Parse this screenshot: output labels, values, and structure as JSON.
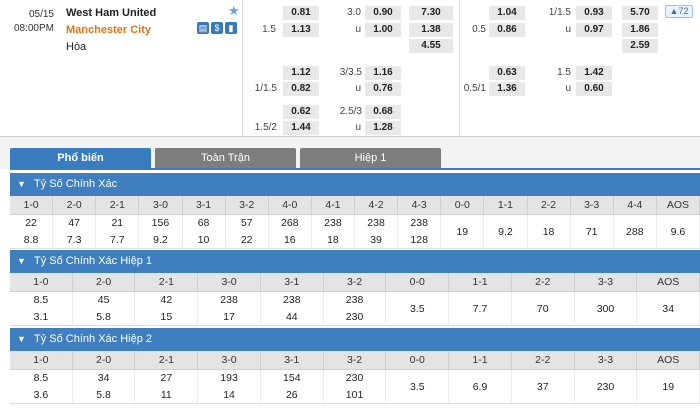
{
  "match": {
    "date": "05/15",
    "time": "08:00PM",
    "home": "West Ham United",
    "away": "Manchester City",
    "draw": "Hòa",
    "badge": "72"
  },
  "odds": {
    "r1": {
      "a": "0.81",
      "b": "3.0",
      "c": "0.90",
      "d": "7.30",
      "e": "1.04",
      "f": "1/1.5",
      "g": "0.93",
      "h": "5.70"
    },
    "r2": {
      "a": "1.5",
      "b": "1.13",
      "c": "u",
      "d": "1.00",
      "e": "1.38",
      "f": "0.5",
      "g": "0.86",
      "h": "u",
      "i": "0.97",
      "j": "1.86"
    },
    "r3": {
      "a": "4.55",
      "b": "2.59"
    },
    "r4": {
      "a": "1.12",
      "b": "3/3.5",
      "c": "1.16",
      "d": "0.63",
      "e": "1.5",
      "f": "1.42"
    },
    "r5": {
      "a": "1/1.5",
      "b": "0.82",
      "c": "u",
      "d": "0.76",
      "e": "0.5/1",
      "f": "1.36",
      "g": "u",
      "h": "0.60"
    },
    "r6": {
      "a": "0.62",
      "b": "2.5/3",
      "c": "0.68"
    },
    "r7": {
      "a": "1.5/2",
      "b": "1.44",
      "c": "u",
      "d": "1.28"
    }
  },
  "tabs": [
    "Phổ biến",
    "Toàn Trận",
    "Hiệp 1"
  ],
  "sections": [
    {
      "title": "Tỷ Số Chính Xác",
      "headers": [
        "1-0",
        "2-0",
        "2-1",
        "3-0",
        "3-1",
        "3-2",
        "4-0",
        "4-1",
        "4-2",
        "4-3",
        "0-0",
        "1-1",
        "2-2",
        "3-3",
        "4-4",
        "AOS"
      ],
      "top": [
        "22",
        "47",
        "21",
        "156",
        "68",
        "57",
        "268",
        "238",
        "238",
        "238",
        "19",
        "9.2",
        "18",
        "71",
        "288",
        "9.6"
      ],
      "bottom": [
        "8.8",
        "7.3",
        "7.7",
        "9.2",
        "10",
        "22",
        "16",
        "18",
        "39",
        "128",
        "",
        "",
        "",
        "",
        "",
        ""
      ]
    },
    {
      "title": "Tỷ Số Chính Xác Hiệp 1",
      "headers": [
        "1-0",
        "2-0",
        "2-1",
        "3-0",
        "3-1",
        "3-2",
        "0-0",
        "1-1",
        "2-2",
        "3-3",
        "AOS"
      ],
      "top": [
        "8.5",
        "45",
        "42",
        "238",
        "238",
        "238",
        "3.5",
        "7.7",
        "70",
        "300",
        "34"
      ],
      "bottom": [
        "3.1",
        "5.8",
        "15",
        "17",
        "44",
        "230",
        "",
        "",
        "",
        "",
        ""
      ]
    },
    {
      "title": "Tỷ Số Chính Xác Hiệp 2",
      "headers": [
        "1-0",
        "2-0",
        "2-1",
        "3-0",
        "3-1",
        "3-2",
        "0-0",
        "1-1",
        "2-2",
        "3-3",
        "AOS"
      ],
      "top": [
        "8.5",
        "34",
        "27",
        "193",
        "154",
        "230",
        "3.5",
        "6.9",
        "37",
        "230",
        "19"
      ],
      "bottom": [
        "3.6",
        "5.8",
        "11",
        "14",
        "26",
        "101",
        "",
        "",
        "",
        "",
        ""
      ]
    }
  ]
}
